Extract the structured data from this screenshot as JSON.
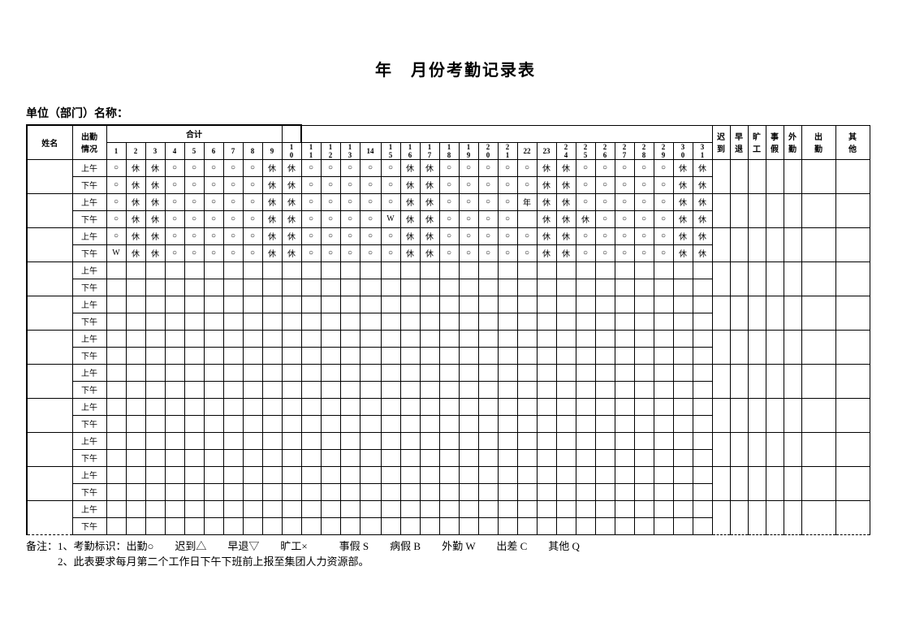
{
  "title": "年　月份考勤记录表",
  "subtitle": "单位（部门）名称：",
  "headers": {
    "name": "姓名",
    "status": "出勤情况",
    "total": "合计",
    "days": [
      "1",
      "2",
      "3",
      "4",
      "5",
      "6",
      "7",
      "8",
      "9",
      "10",
      "11",
      "12",
      "13",
      "14",
      "15",
      "16",
      "17",
      "18",
      "19",
      "20",
      "21",
      "22",
      "23",
      "24",
      "25",
      "26",
      "27",
      "28",
      "29",
      "30",
      "31"
    ],
    "summary": [
      "迟到",
      "早退",
      "旷工",
      "事假",
      "外勤",
      "出勤",
      "其他"
    ]
  },
  "periods": {
    "am": "上午",
    "pm": "下午"
  },
  "rows": [
    {
      "am": [
        "○",
        "休",
        "休",
        "○",
        "○",
        "○",
        "○",
        "○",
        "休",
        "休",
        "○",
        "○",
        "○",
        "○",
        "○",
        "休",
        "休",
        "○",
        "○",
        "○",
        "○",
        "○",
        "休",
        "休",
        "○",
        "○",
        "○",
        "○",
        "○",
        "休",
        "休"
      ],
      "pm": [
        "○",
        "休",
        "休",
        "○",
        "○",
        "○",
        "○",
        "○",
        "休",
        "休",
        "○",
        "○",
        "○",
        "○",
        "○",
        "休",
        "休",
        "○",
        "○",
        "○",
        "○",
        "○",
        "休",
        "休",
        "○",
        "○",
        "○",
        "○",
        "○",
        "休",
        "休"
      ]
    },
    {
      "am": [
        "○",
        "休",
        "休",
        "○",
        "○",
        "○",
        "○",
        "○",
        "休",
        "休",
        "○",
        "○",
        "○",
        "○",
        "○",
        "休",
        "休",
        "○",
        "○",
        "○",
        "○",
        "年",
        "休",
        "休",
        "○",
        "○",
        "○",
        "○",
        "○",
        "休",
        "休"
      ],
      "pm": [
        "○",
        "休",
        "休",
        "○",
        "○",
        "○",
        "○",
        "○",
        "休",
        "休",
        "○",
        "○",
        "○",
        "○",
        "W",
        "休",
        "休",
        "○",
        "○",
        "○",
        "○",
        "",
        "休",
        "休",
        "休",
        "○",
        "○",
        "○",
        "○",
        "休",
        "休"
      ]
    },
    {
      "am": [
        "○",
        "休",
        "休",
        "○",
        "○",
        "○",
        "○",
        "○",
        "休",
        "休",
        "○",
        "○",
        "○",
        "○",
        "○",
        "休",
        "休",
        "○",
        "○",
        "○",
        "○",
        "○",
        "休",
        "休",
        "○",
        "○",
        "○",
        "○",
        "○",
        "休",
        "休"
      ],
      "pm": [
        "W",
        "休",
        "休",
        "○",
        "○",
        "○",
        "○",
        "○",
        "休",
        "休",
        "○",
        "○",
        "○",
        "○",
        "○",
        "休",
        "休",
        "○",
        "○",
        "○",
        "○",
        "○",
        "休",
        "休",
        "○",
        "○",
        "○",
        "○",
        "○",
        "休",
        "休"
      ]
    },
    {
      "am": [
        "",
        "",
        "",
        "",
        "",
        "",
        "",
        "",
        "",
        "",
        "",
        "",
        "",
        "",
        "",
        "",
        "",
        "",
        "",
        "",
        "",
        "",
        "",
        "",
        "",
        "",
        "",
        "",
        "",
        "",
        ""
      ],
      "pm": [
        "",
        "",
        "",
        "",
        "",
        "",
        "",
        "",
        "",
        "",
        "",
        "",
        "",
        "",
        "",
        "",
        "",
        "",
        "",
        "",
        "",
        "",
        "",
        "",
        "",
        "",
        "",
        "",
        "",
        "",
        ""
      ]
    },
    {
      "am": [
        "",
        "",
        "",
        "",
        "",
        "",
        "",
        "",
        "",
        "",
        "",
        "",
        "",
        "",
        "",
        "",
        "",
        "",
        "",
        "",
        "",
        "",
        "",
        "",
        "",
        "",
        "",
        "",
        "",
        "",
        ""
      ],
      "pm": [
        "",
        "",
        "",
        "",
        "",
        "",
        "",
        "",
        "",
        "",
        "",
        "",
        "",
        "",
        "",
        "",
        "",
        "",
        "",
        "",
        "",
        "",
        "",
        "",
        "",
        "",
        "",
        "",
        "",
        "",
        ""
      ]
    },
    {
      "am": [
        "",
        "",
        "",
        "",
        "",
        "",
        "",
        "",
        "",
        "",
        "",
        "",
        "",
        "",
        "",
        "",
        "",
        "",
        "",
        "",
        "",
        "",
        "",
        "",
        "",
        "",
        "",
        "",
        "",
        "",
        ""
      ],
      "pm": [
        "",
        "",
        "",
        "",
        "",
        "",
        "",
        "",
        "",
        "",
        "",
        "",
        "",
        "",
        "",
        "",
        "",
        "",
        "",
        "",
        "",
        "",
        "",
        "",
        "",
        "",
        "",
        "",
        "",
        "",
        ""
      ]
    },
    {
      "am": [
        "",
        "",
        "",
        "",
        "",
        "",
        "",
        "",
        "",
        "",
        "",
        "",
        "",
        "",
        "",
        "",
        "",
        "",
        "",
        "",
        "",
        "",
        "",
        "",
        "",
        "",
        "",
        "",
        "",
        "",
        ""
      ],
      "pm": [
        "",
        "",
        "",
        "",
        "",
        "",
        "",
        "",
        "",
        "",
        "",
        "",
        "",
        "",
        "",
        "",
        "",
        "",
        "",
        "",
        "",
        "",
        "",
        "",
        "",
        "",
        "",
        "",
        "",
        "",
        ""
      ]
    },
    {
      "am": [
        "",
        "",
        "",
        "",
        "",
        "",
        "",
        "",
        "",
        "",
        "",
        "",
        "",
        "",
        "",
        "",
        "",
        "",
        "",
        "",
        "",
        "",
        "",
        "",
        "",
        "",
        "",
        "",
        "",
        "",
        ""
      ],
      "pm": [
        "",
        "",
        "",
        "",
        "",
        "",
        "",
        "",
        "",
        "",
        "",
        "",
        "",
        "",
        "",
        "",
        "",
        "",
        "",
        "",
        "",
        "",
        "",
        "",
        "",
        "",
        "",
        "",
        "",
        "",
        ""
      ]
    },
    {
      "am": [
        "",
        "",
        "",
        "",
        "",
        "",
        "",
        "",
        "",
        "",
        "",
        "",
        "",
        "",
        "",
        "",
        "",
        "",
        "",
        "",
        "",
        "",
        "",
        "",
        "",
        "",
        "",
        "",
        "",
        "",
        ""
      ],
      "pm": [
        "",
        "",
        "",
        "",
        "",
        "",
        "",
        "",
        "",
        "",
        "",
        "",
        "",
        "",
        "",
        "",
        "",
        "",
        "",
        "",
        "",
        "",
        "",
        "",
        "",
        "",
        "",
        "",
        "",
        "",
        ""
      ]
    },
    {
      "am": [
        "",
        "",
        "",
        "",
        "",
        "",
        "",
        "",
        "",
        "",
        "",
        "",
        "",
        "",
        "",
        "",
        "",
        "",
        "",
        "",
        "",
        "",
        "",
        "",
        "",
        "",
        "",
        "",
        "",
        "",
        ""
      ],
      "pm": [
        "",
        "",
        "",
        "",
        "",
        "",
        "",
        "",
        "",
        "",
        "",
        "",
        "",
        "",
        "",
        "",
        "",
        "",
        "",
        "",
        "",
        "",
        "",
        "",
        "",
        "",
        "",
        "",
        "",
        "",
        ""
      ]
    },
    {
      "am": [
        "",
        "",
        "",
        "",
        "",
        "",
        "",
        "",
        "",
        "",
        "",
        "",
        "",
        "",
        "",
        "",
        "",
        "",
        "",
        "",
        "",
        "",
        "",
        "",
        "",
        "",
        "",
        "",
        "",
        "",
        ""
      ],
      "pm": [
        "",
        "",
        "",
        "",
        "",
        "",
        "",
        "",
        "",
        "",
        "",
        "",
        "",
        "",
        "",
        "",
        "",
        "",
        "",
        "",
        "",
        "",
        "",
        "",
        "",
        "",
        "",
        "",
        "",
        "",
        ""
      ]
    }
  ],
  "notes": {
    "line1": "备注：1、考勤标识：出勤○　　迟到△　　早退▽　　旷工×　　　事假 S　　病假 B　　外勤 W　　出差 C　　其他 Q",
    "line2": "　　　2、此表要求每月第二个工作日下午下班前上报至集团人力资源部。"
  }
}
